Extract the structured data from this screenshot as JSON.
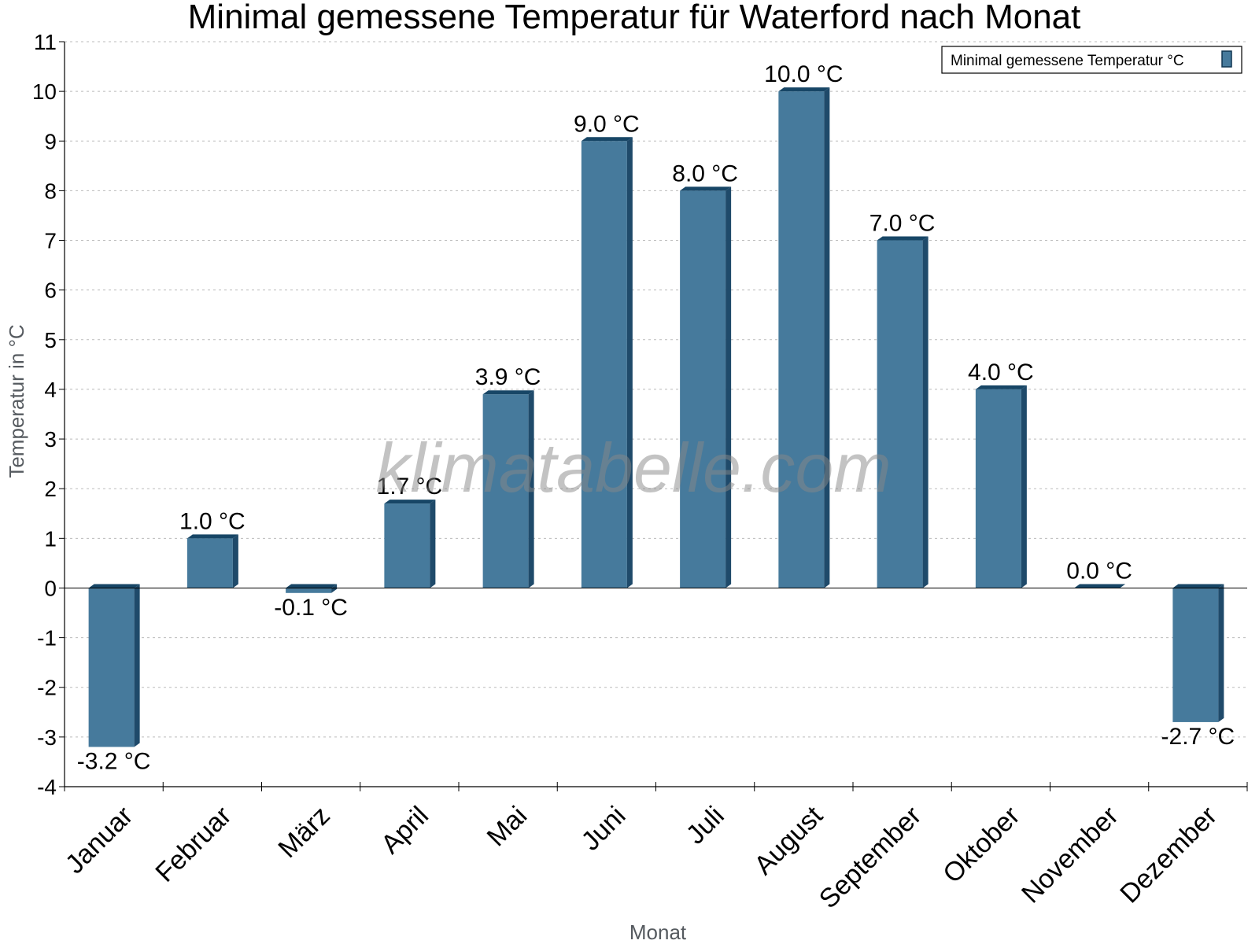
{
  "watermark": "klimatabelle.com",
  "colors": {
    "bar_front": "#467a9c",
    "bar_side": "#1f4a6a",
    "bar_top": "#174666",
    "grid": "#bbbbbb",
    "axis": "#000000"
  },
  "chart_data": {
    "type": "bar",
    "title": "Minimal gemessene Temperatur für Waterford nach Monat",
    "xlabel": "Monat",
    "ylabel": "Temperatur in °C",
    "ylim": [
      -4,
      11
    ],
    "yticks": [
      -4,
      -3,
      -2,
      -1,
      0,
      1,
      2,
      3,
      4,
      5,
      6,
      7,
      8,
      9,
      10,
      11
    ],
    "grid": true,
    "legend_position": "top-right",
    "categories": [
      "Januar",
      "Februar",
      "März",
      "April",
      "Mai",
      "Juni",
      "Juli",
      "August",
      "September",
      "Oktober",
      "November",
      "Dezember"
    ],
    "series": [
      {
        "name": "Minimal gemessene Temperatur °C",
        "values": [
          -3.2,
          1.0,
          -0.1,
          1.7,
          3.9,
          9.0,
          8.0,
          10.0,
          7.0,
          4.0,
          0.0,
          -2.7
        ],
        "labels": [
          "-3.2 °C",
          "1.0 °C",
          "-0.1 °C",
          "1.7 °C",
          "3.9 °C",
          "9.0 °C",
          "8.0 °C",
          "10.0 °C",
          "7.0 °C",
          "4.0 °C",
          "0.0 °C",
          "-2.7 °C"
        ]
      }
    ]
  }
}
